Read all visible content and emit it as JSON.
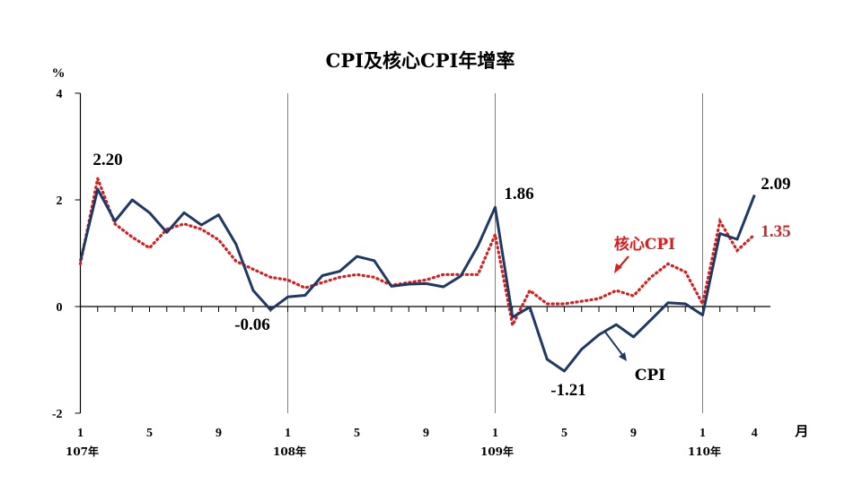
{
  "colors": {
    "cpi": "#1f3864",
    "core": "#d81e1e",
    "axis": "#000000",
    "grid": "#7f7f7f"
  },
  "chart_data": {
    "type": "line",
    "title": "CPI及核心CPI年增率",
    "ylabel": "%",
    "xlabel": "月",
    "ylim": [
      -2,
      4
    ],
    "yticks": [
      "4",
      "2",
      "0",
      "-2"
    ],
    "xtick_labels": [
      "1",
      "5",
      "9",
      "1",
      "5",
      "9",
      "1",
      "5",
      "9",
      "1",
      "4"
    ],
    "year_labels": [
      "107年",
      "108年",
      "109年",
      "110年"
    ],
    "grid": "vertical year separators",
    "series": [
      {
        "name": "CPI",
        "style": "solid",
        "values": [
          0.85,
          2.2,
          1.6,
          2.0,
          1.76,
          1.39,
          1.76,
          1.53,
          1.72,
          1.17,
          0.3,
          -0.06,
          0.18,
          0.21,
          0.58,
          0.66,
          0.94,
          0.86,
          0.38,
          0.42,
          0.43,
          0.37,
          0.57,
          1.14,
          1.86,
          -0.2,
          -0.01,
          -0.99,
          -1.21,
          -0.8,
          -0.53,
          -0.34,
          -0.57,
          -0.25,
          0.07,
          0.05,
          -0.16,
          1.37,
          1.26,
          2.09
        ]
      },
      {
        "name": "核心CPI",
        "style": "dotted",
        "values": [
          0.8,
          2.4,
          1.55,
          1.3,
          1.1,
          1.45,
          1.55,
          1.45,
          1.25,
          0.85,
          0.7,
          0.55,
          0.5,
          0.35,
          0.45,
          0.55,
          0.6,
          0.55,
          0.4,
          0.45,
          0.5,
          0.6,
          0.6,
          0.6,
          1.35,
          -0.35,
          0.3,
          0.05,
          0.05,
          0.1,
          0.15,
          0.3,
          0.2,
          0.55,
          0.8,
          0.65,
          0.05,
          1.6,
          1.05,
          1.35
        ]
      }
    ],
    "annotations": [
      {
        "text": "2.20",
        "series": "CPI"
      },
      {
        "text": "-0.06",
        "series": "CPI"
      },
      {
        "text": "1.86",
        "series": "CPI"
      },
      {
        "text": "-1.21",
        "series": "CPI"
      },
      {
        "text": "2.09",
        "series": "CPI"
      },
      {
        "text": "1.35",
        "series": "核心CPI"
      }
    ],
    "legend_labels": {
      "core": "核心CPI",
      "cpi": "CPI"
    }
  }
}
